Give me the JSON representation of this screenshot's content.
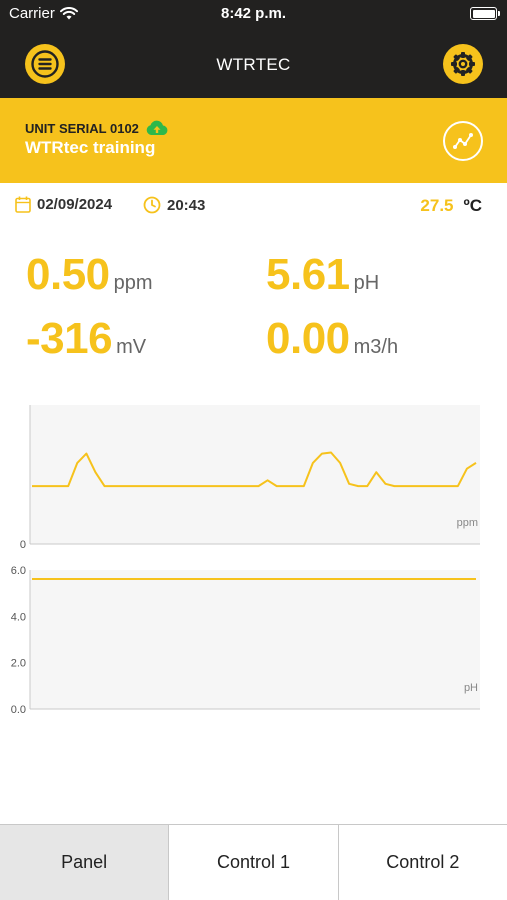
{
  "status_bar": {
    "carrier": "Carrier",
    "time": "8:42 p.m."
  },
  "nav": {
    "title": "WTRTEC",
    "menu_icon": "menu-icon",
    "settings_icon": "gear-icon"
  },
  "unit": {
    "serial_label": "UNIT SERIAL 0102",
    "name": "WTRtec training",
    "cloud_icon": "cloud-upload-icon",
    "chart_icon": "line-chart-icon"
  },
  "info": {
    "date": "02/09/2024",
    "time": "20:43",
    "temperature": "27.5",
    "temperature_unit": "ºC"
  },
  "readings": [
    {
      "value": "0.50",
      "unit": "ppm"
    },
    {
      "value": "5.61",
      "unit": "pH"
    },
    {
      "value": "-316",
      "unit": "mV"
    },
    {
      "value": "0.00",
      "unit": "m3/h"
    }
  ],
  "chart_data": [
    {
      "type": "line",
      "ylabel": "ppm",
      "yticks": [
        "0"
      ],
      "ylim": [
        0,
        1.2
      ],
      "x": [
        0,
        1,
        2,
        3,
        4,
        5,
        6,
        7,
        8,
        9,
        10,
        11,
        12,
        13,
        14,
        15,
        16,
        17,
        18,
        19,
        20,
        21,
        22,
        23,
        24,
        25,
        26,
        27,
        28,
        29,
        30,
        31,
        32,
        33,
        34,
        35,
        36,
        37,
        38,
        39,
        40,
        41,
        42,
        43,
        44,
        45,
        46,
        47,
        48,
        49
      ],
      "series": [
        {
          "values": [
            0.5,
            0.5,
            0.5,
            0.5,
            0.5,
            0.7,
            0.78,
            0.62,
            0.5,
            0.5,
            0.5,
            0.5,
            0.5,
            0.5,
            0.5,
            0.5,
            0.5,
            0.5,
            0.5,
            0.5,
            0.5,
            0.5,
            0.5,
            0.5,
            0.5,
            0.5,
            0.55,
            0.5,
            0.5,
            0.5,
            0.5,
            0.7,
            0.78,
            0.79,
            0.7,
            0.52,
            0.5,
            0.5,
            0.62,
            0.52,
            0.5,
            0.5,
            0.5,
            0.5,
            0.5,
            0.5,
            0.5,
            0.5,
            0.65,
            0.7
          ]
        }
      ]
    },
    {
      "type": "line",
      "ylabel": "pH",
      "yticks": [
        "0.0",
        "2.0",
        "4.0",
        "6.0"
      ],
      "ylim": [
        0,
        6.0
      ],
      "series": [
        {
          "values": [
            5.61,
            5.61
          ]
        }
      ]
    }
  ],
  "tabs": [
    {
      "label": "Panel",
      "active": true
    },
    {
      "label": "Control 1",
      "active": false
    },
    {
      "label": "Control 2",
      "active": false
    }
  ],
  "colors": {
    "accent": "#f6c21c",
    "header": "#222120",
    "cloud": "#2eb84a"
  }
}
